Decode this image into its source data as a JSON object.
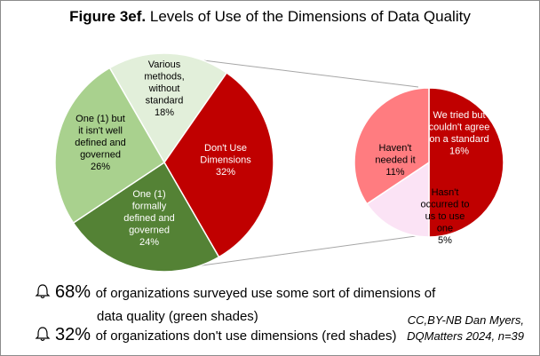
{
  "title": {
    "figure": "Figure 3ef.",
    "text": "Levels of Use of the Dimensions of Data Quality"
  },
  "chart_data": [
    {
      "type": "pie",
      "name": "main",
      "slices": [
        {
          "label_lines": [
            "Various",
            "methods,",
            "without",
            "standard"
          ],
          "value_label": "18%",
          "value": 18,
          "color": "#e2efda"
        },
        {
          "label_lines": [
            "Don't Use",
            "Dimensions"
          ],
          "value_label": "32%",
          "value": 32,
          "color": "#c00000"
        },
        {
          "label_lines": [
            "One (1)",
            "formally",
            "defined and",
            "governed"
          ],
          "value_label": "24%",
          "value": 24,
          "color": "#548235"
        },
        {
          "label_lines": [
            "One (1) but",
            "it isn't well",
            "defined and",
            "governed"
          ],
          "value_label": "26%",
          "value": 26,
          "color": "#a9d18e"
        }
      ]
    },
    {
      "type": "pie",
      "name": "breakdown",
      "parent": "Don't Use Dimensions",
      "slices": [
        {
          "label_lines": [
            "We tried but",
            "couldn't agree",
            "on a standard"
          ],
          "value_label": "16%",
          "value": 16,
          "color": "#c00000"
        },
        {
          "label_lines": [
            "Hasn't",
            "occurred to",
            "us to use",
            "one"
          ],
          "value_label": "5%",
          "value": 5,
          "color": "#fbe3f5"
        },
        {
          "label_lines": [
            "Haven't",
            "needed it"
          ],
          "value_label": "11%",
          "value": 11,
          "color": "#ff7c80"
        }
      ]
    }
  ],
  "statements": [
    {
      "percent": "68%",
      "text": "of organizations surveyed use some sort of dimensions of",
      "continuation": "data quality (green shades)"
    },
    {
      "percent": "32%",
      "text": "of organizations don't use dimensions (red shades)"
    }
  ],
  "credit": {
    "line1": "CC,BY-NB Dan Myers,",
    "line2": "DQMatters 2024, n=39"
  },
  "colors": {
    "connector": "#a6a6a6",
    "border": "#8c8c8c"
  }
}
